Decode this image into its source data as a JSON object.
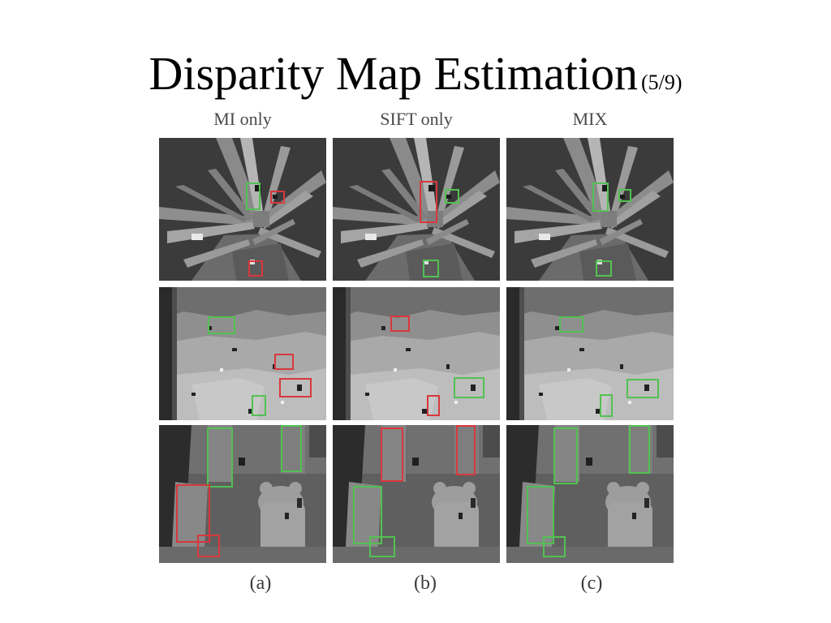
{
  "slide": {
    "title": "Disparity Map Estimation",
    "title_suffix": "(5/9)"
  },
  "figure": {
    "columns": [
      {
        "label": "MI only",
        "sublabel": "(a)"
      },
      {
        "label": "SIFT only",
        "sublabel": "(b)"
      },
      {
        "label": "MIX",
        "sublabel": "(c)"
      }
    ],
    "rows": [
      "plant-scene",
      "cloth-scene",
      "teddy-scene"
    ],
    "box_colors": {
      "error": "#d8383c",
      "improved": "#52c152"
    }
  }
}
